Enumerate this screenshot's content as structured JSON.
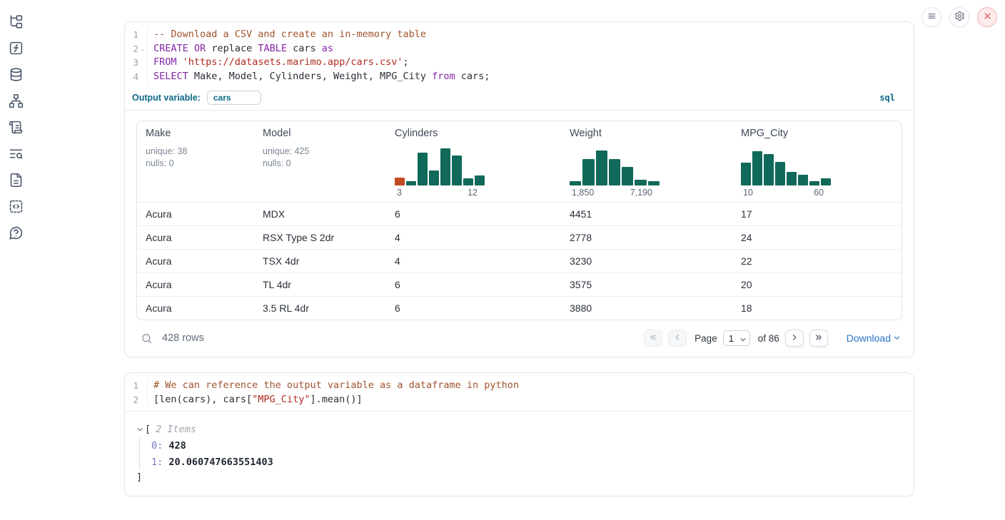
{
  "colors": {
    "histogram_green": "#10695a",
    "histogram_orange": "#c14a24",
    "accent_teal_blue": "#0d6986",
    "link_blue": "#2a72cc",
    "danger_red": "#e05252"
  },
  "sidebar": {
    "icons": [
      "file-tree",
      "functions",
      "database",
      "dependency-graph",
      "scratchpad",
      "logs",
      "documentation",
      "snippets",
      "help"
    ]
  },
  "topbar": {
    "buttons": [
      "menu",
      "settings",
      "shutdown"
    ]
  },
  "sql_cell": {
    "language_badge": "sql",
    "output_variable_label": "Output variable:",
    "output_variable_value": "cars",
    "lines": [
      {
        "number": "1",
        "fold": false,
        "tokens": [
          {
            "t": "-- Download a CSV and create an in-memory table",
            "c": "comment"
          }
        ]
      },
      {
        "number": "2",
        "fold": true,
        "tokens": [
          {
            "t": "CREATE",
            "c": "kw"
          },
          {
            "t": " ",
            "c": "plain"
          },
          {
            "t": "OR",
            "c": "kw"
          },
          {
            "t": " replace ",
            "c": "plain"
          },
          {
            "t": "TABLE",
            "c": "kw"
          },
          {
            "t": " cars ",
            "c": "plain"
          },
          {
            "t": "as",
            "c": "kw"
          }
        ]
      },
      {
        "number": "3",
        "fold": false,
        "tokens": [
          {
            "t": "FROM",
            "c": "kw"
          },
          {
            "t": " ",
            "c": "plain"
          },
          {
            "t": "'https://datasets.marimo.app/cars.csv'",
            "c": "str"
          },
          {
            "t": ";",
            "c": "plain"
          }
        ]
      },
      {
        "number": "4",
        "fold": false,
        "tokens": [
          {
            "t": "SELECT",
            "c": "kw"
          },
          {
            "t": " Make, Model, Cylinders, Weight, MPG_City ",
            "c": "plain"
          },
          {
            "t": "from",
            "c": "kw"
          },
          {
            "t": " cars;",
            "c": "plain"
          }
        ]
      }
    ]
  },
  "table": {
    "columns": [
      {
        "name": "Make",
        "type": "text",
        "stats": [
          "unique: 38",
          "nulls: 0"
        ]
      },
      {
        "name": "Model",
        "type": "text",
        "stats": [
          "unique: 425",
          "nulls: 0"
        ]
      },
      {
        "name": "Cylinders",
        "type": "histogram",
        "min_label": "3",
        "max_label": "12",
        "bars": [
          {
            "h": 22,
            "c": "orange"
          },
          {
            "h": 12
          },
          {
            "h": 88
          },
          {
            "h": 40
          },
          {
            "h": 100
          },
          {
            "h": 80
          },
          {
            "h": 20
          },
          {
            "h": 26
          }
        ]
      },
      {
        "name": "Weight",
        "type": "histogram",
        "min_label": "1,850",
        "max_label": "7,190",
        "bars": [
          {
            "h": 12
          },
          {
            "h": 72
          },
          {
            "h": 95
          },
          {
            "h": 72
          },
          {
            "h": 50
          },
          {
            "h": 16
          },
          {
            "h": 12
          }
        ]
      },
      {
        "name": "MPG_City",
        "type": "histogram",
        "min_label": "10",
        "max_label": "60",
        "bars": [
          {
            "h": 62
          },
          {
            "h": 92
          },
          {
            "h": 84
          },
          {
            "h": 64
          },
          {
            "h": 36
          },
          {
            "h": 28
          },
          {
            "h": 11
          },
          {
            "h": 20
          }
        ]
      }
    ],
    "rows": [
      [
        "Acura",
        "MDX",
        "6",
        "4451",
        "17"
      ],
      [
        "Acura",
        "RSX Type S 2dr",
        "4",
        "2778",
        "24"
      ],
      [
        "Acura",
        "TSX 4dr",
        "4",
        "3230",
        "22"
      ],
      [
        "Acura",
        "TL 4dr",
        "6",
        "3575",
        "20"
      ],
      [
        "Acura",
        "3.5 RL 4dr",
        "6",
        "3880",
        "18"
      ]
    ],
    "footer": {
      "row_count": "428 rows",
      "page_label": "Page",
      "page_value": "1",
      "of_label": "of 86",
      "download_label": "Download"
    }
  },
  "python_cell": {
    "lines": [
      {
        "number": "1",
        "fold": false,
        "tokens": [
          {
            "t": "# We can reference the output variable as a dataframe in python",
            "c": "comment"
          }
        ]
      },
      {
        "number": "2",
        "fold": false,
        "tokens": [
          {
            "t": "[len(cars), cars[",
            "c": "plain"
          },
          {
            "t": "\"MPG_City\"",
            "c": "str"
          },
          {
            "t": "].mean()]",
            "c": "plain"
          }
        ]
      }
    ]
  },
  "output_tree": {
    "open_bracket": "[",
    "items_label": "2 Items",
    "entries": [
      {
        "key": "0:",
        "value": "428"
      },
      {
        "key": "1:",
        "value": "20.060747663551403"
      }
    ],
    "close_bracket": "]"
  }
}
